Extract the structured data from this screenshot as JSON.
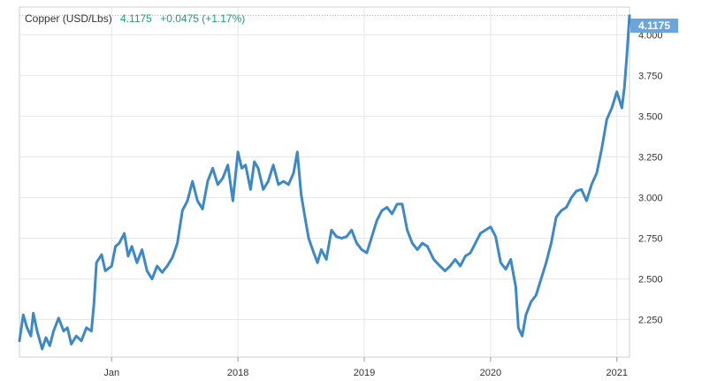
{
  "header": {
    "instrument": "Copper (USD/Lbs)",
    "last": "4.1175",
    "change": "+0.0475 (+1.17%)"
  },
  "price_tag": "4.1175",
  "colors": {
    "line": "#3c88c8",
    "tag": "#6aa6dc",
    "up": "#1f9d74",
    "grid": "#e6e6e6"
  },
  "chart_data": {
    "type": "line",
    "title": "",
    "xlabel": "",
    "ylabel": "",
    "ylim": [
      2.02,
      4.17
    ],
    "y_ticks": [
      "2.250",
      "2.500",
      "2.750",
      "3.000",
      "3.250",
      "3.500",
      "3.750",
      "4.000"
    ],
    "x_ticks": [
      {
        "label": "Jan",
        "x": 2017.0
      },
      {
        "label": "2018",
        "x": 2018.0
      },
      {
        "label": "2019",
        "x": 2019.0
      },
      {
        "label": "2020",
        "x": 2020.0
      },
      {
        "label": "2021",
        "x": 2021.0
      }
    ],
    "xlim": [
      2016.27,
      2021.1
    ],
    "grid": true,
    "series": [
      {
        "points": [
          [
            2016.27,
            2.12
          ],
          [
            2016.3,
            2.28
          ],
          [
            2016.33,
            2.2
          ],
          [
            2016.36,
            2.15
          ],
          [
            2016.38,
            2.29
          ],
          [
            2016.41,
            2.18
          ],
          [
            2016.45,
            2.07
          ],
          [
            2016.48,
            2.14
          ],
          [
            2016.51,
            2.09
          ],
          [
            2016.54,
            2.18
          ],
          [
            2016.58,
            2.26
          ],
          [
            2016.62,
            2.18
          ],
          [
            2016.65,
            2.2
          ],
          [
            2016.68,
            2.1
          ],
          [
            2016.72,
            2.15
          ],
          [
            2016.76,
            2.12
          ],
          [
            2016.8,
            2.2
          ],
          [
            2016.84,
            2.18
          ],
          [
            2016.86,
            2.35
          ],
          [
            2016.88,
            2.6
          ],
          [
            2016.92,
            2.65
          ],
          [
            2016.95,
            2.55
          ],
          [
            2017.0,
            2.58
          ],
          [
            2017.03,
            2.7
          ],
          [
            2017.06,
            2.72
          ],
          [
            2017.1,
            2.78
          ],
          [
            2017.13,
            2.64
          ],
          [
            2017.16,
            2.7
          ],
          [
            2017.2,
            2.6
          ],
          [
            2017.24,
            2.68
          ],
          [
            2017.28,
            2.55
          ],
          [
            2017.32,
            2.5
          ],
          [
            2017.36,
            2.58
          ],
          [
            2017.4,
            2.54
          ],
          [
            2017.44,
            2.58
          ],
          [
            2017.48,
            2.63
          ],
          [
            2017.52,
            2.72
          ],
          [
            2017.56,
            2.92
          ],
          [
            2017.6,
            2.98
          ],
          [
            2017.64,
            3.1
          ],
          [
            2017.68,
            2.98
          ],
          [
            2017.72,
            2.93
          ],
          [
            2017.76,
            3.1
          ],
          [
            2017.8,
            3.18
          ],
          [
            2017.84,
            3.08
          ],
          [
            2017.88,
            3.12
          ],
          [
            2017.92,
            3.2
          ],
          [
            2017.96,
            2.98
          ],
          [
            2018.0,
            3.28
          ],
          [
            2018.03,
            3.18
          ],
          [
            2018.06,
            3.2
          ],
          [
            2018.1,
            3.05
          ],
          [
            2018.13,
            3.22
          ],
          [
            2018.16,
            3.18
          ],
          [
            2018.2,
            3.05
          ],
          [
            2018.24,
            3.1
          ],
          [
            2018.28,
            3.2
          ],
          [
            2018.32,
            3.08
          ],
          [
            2018.36,
            3.1
          ],
          [
            2018.4,
            3.08
          ],
          [
            2018.44,
            3.15
          ],
          [
            2018.47,
            3.28
          ],
          [
            2018.5,
            3.02
          ],
          [
            2018.53,
            2.88
          ],
          [
            2018.56,
            2.75
          ],
          [
            2018.6,
            2.66
          ],
          [
            2018.63,
            2.6
          ],
          [
            2018.66,
            2.68
          ],
          [
            2018.7,
            2.62
          ],
          [
            2018.74,
            2.8
          ],
          [
            2018.78,
            2.76
          ],
          [
            2018.82,
            2.75
          ],
          [
            2018.86,
            2.76
          ],
          [
            2018.9,
            2.8
          ],
          [
            2018.94,
            2.72
          ],
          [
            2018.98,
            2.68
          ],
          [
            2019.02,
            2.66
          ],
          [
            2019.06,
            2.76
          ],
          [
            2019.1,
            2.86
          ],
          [
            2019.14,
            2.92
          ],
          [
            2019.18,
            2.94
          ],
          [
            2019.22,
            2.9
          ],
          [
            2019.26,
            2.96
          ],
          [
            2019.3,
            2.96
          ],
          [
            2019.34,
            2.8
          ],
          [
            2019.38,
            2.72
          ],
          [
            2019.42,
            2.68
          ],
          [
            2019.46,
            2.72
          ],
          [
            2019.5,
            2.7
          ],
          [
            2019.55,
            2.62
          ],
          [
            2019.6,
            2.58
          ],
          [
            2019.64,
            2.55
          ],
          [
            2019.68,
            2.58
          ],
          [
            2019.72,
            2.62
          ],
          [
            2019.76,
            2.58
          ],
          [
            2019.8,
            2.64
          ],
          [
            2019.84,
            2.66
          ],
          [
            2019.88,
            2.72
          ],
          [
            2019.92,
            2.78
          ],
          [
            2019.96,
            2.8
          ],
          [
            2020.0,
            2.82
          ],
          [
            2020.04,
            2.76
          ],
          [
            2020.08,
            2.6
          ],
          [
            2020.12,
            2.56
          ],
          [
            2020.16,
            2.62
          ],
          [
            2020.2,
            2.45
          ],
          [
            2020.22,
            2.2
          ],
          [
            2020.25,
            2.15
          ],
          [
            2020.28,
            2.28
          ],
          [
            2020.32,
            2.36
          ],
          [
            2020.36,
            2.4
          ],
          [
            2020.4,
            2.5
          ],
          [
            2020.44,
            2.6
          ],
          [
            2020.48,
            2.72
          ],
          [
            2020.52,
            2.88
          ],
          [
            2020.56,
            2.92
          ],
          [
            2020.6,
            2.94
          ],
          [
            2020.64,
            3.0
          ],
          [
            2020.68,
            3.04
          ],
          [
            2020.72,
            3.05
          ],
          [
            2020.76,
            2.98
          ],
          [
            2020.8,
            3.08
          ],
          [
            2020.84,
            3.15
          ],
          [
            2020.88,
            3.3
          ],
          [
            2020.92,
            3.48
          ],
          [
            2020.96,
            3.55
          ],
          [
            2021.0,
            3.65
          ],
          [
            2021.02,
            3.6
          ],
          [
            2021.04,
            3.55
          ],
          [
            2021.06,
            3.68
          ],
          [
            2021.08,
            3.88
          ],
          [
            2021.1,
            4.1175
          ]
        ]
      }
    ]
  }
}
